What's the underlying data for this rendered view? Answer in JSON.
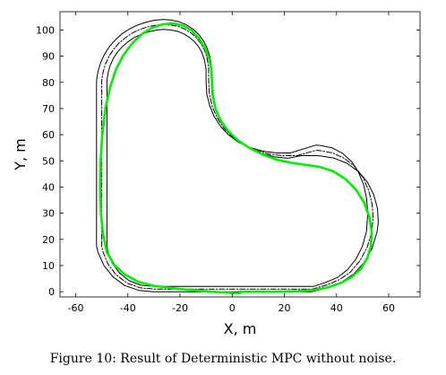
{
  "chart_data": {
    "type": "line",
    "title": "",
    "xlabel": "X, m",
    "ylabel": "Y, m",
    "xlim": [
      -66,
      72
    ],
    "ylim": [
      -2,
      107
    ],
    "xticks": [
      -60,
      -40,
      -20,
      0,
      20,
      40,
      60
    ],
    "yticks": [
      0,
      10,
      20,
      30,
      40,
      50,
      60,
      70,
      80,
      90,
      100
    ],
    "grid": false,
    "series": [
      {
        "role": "track-outer-boundary",
        "color": "#000000",
        "style": "solid",
        "x": [
          -52.0,
          -52.0,
          -51.9,
          -51.3,
          -50.3,
          -48.9,
          -47.1,
          -44.9,
          -42.4,
          -39.5,
          -36.5,
          -33.3,
          -30.0,
          -26.7,
          -23.5,
          -20.5,
          -17.6,
          -15.1,
          -12.9,
          -11.1,
          -9.7,
          -8.7,
          -8.1,
          -8.0,
          -8.0,
          -7.7,
          -6.5,
          -4.5,
          -1.7,
          2.0,
          6.3,
          11.1,
          16.2,
          21.4,
          26.5,
          32.0,
          33.6,
          38.9,
          43.9,
          48.3,
          51.8,
          54.3,
          55.7,
          56.0,
          55.5,
          53.6,
          50.5,
          46.5,
          41.6,
          36.2,
          30.5,
          30.0,
          0.0,
          -30.0,
          -35.8,
          -41.3,
          -45.8,
          -49.2,
          -51.4,
          -52.0,
          -52.0
        ],
        "y": [
          20.0,
          80.0,
          81.6,
          84.7,
          87.8,
          90.8,
          93.6,
          96.1,
          98.4,
          100.3,
          101.8,
          102.9,
          103.7,
          104.0,
          103.8,
          103.2,
          102.0,
          100.4,
          98.4,
          96.0,
          93.3,
          90.4,
          87.4,
          85.9,
          80.0,
          75.1,
          70.2,
          65.7,
          61.6,
          58.0,
          55.1,
          52.9,
          51.5,
          51.0,
          52.0,
          52.0,
          51.9,
          51.1,
          49.1,
          46.0,
          41.9,
          37.0,
          31.8,
          26.4,
          22.7,
          16.5,
          11.1,
          6.7,
          3.5,
          1.4,
          0.0,
          0.0,
          0.0,
          0.0,
          0.5,
          2.4,
          5.8,
          10.1,
          15.0,
          17.4,
          20.0
        ]
      },
      {
        "role": "track-centerline",
        "color": "#000000",
        "style": "dash-dot",
        "x": [
          -50.0,
          -50.0,
          -49.9,
          -49.4,
          -48.5,
          -47.2,
          -45.5,
          -43.5,
          -41.1,
          -38.5,
          -35.7,
          -32.7,
          -29.6,
          -26.6,
          -23.6,
          -20.7,
          -18.1,
          -15.7,
          -13.7,
          -12.0,
          -10.6,
          -9.7,
          -9.2,
          -9.0,
          -9.0,
          -8.7,
          -7.6,
          -5.7,
          -3.1,
          0.3,
          4.4,
          9.0,
          14.1,
          19.4,
          24.8,
          32.0,
          33.7,
          38.6,
          43.1,
          47.0,
          50.1,
          52.3,
          53.6,
          54.0,
          53.5,
          51.7,
          48.9,
          45.3,
          40.9,
          36.0,
          30.8,
          30.0,
          0.0,
          -30.0,
          -35.4,
          -40.4,
          -44.5,
          -47.6,
          -49.5,
          -50.0,
          -50.0
        ],
        "y": [
          20.0,
          80.0,
          81.5,
          84.3,
          87.2,
          90.0,
          92.5,
          94.9,
          96.9,
          98.7,
          100.1,
          101.1,
          101.8,
          102.1,
          101.9,
          101.4,
          100.3,
          98.8,
          97.0,
          94.8,
          92.3,
          89.6,
          86.8,
          85.4,
          80.0,
          75.3,
          70.6,
          66.3,
          62.4,
          58.9,
          56.1,
          54.0,
          52.6,
          52.0,
          52.0,
          54.0,
          53.9,
          53.0,
          50.9,
          47.8,
          43.7,
          38.8,
          33.6,
          28.4,
          22.9,
          16.9,
          11.7,
          7.5,
          4.5,
          2.5,
          1.0,
          1.0,
          1.0,
          1.0,
          1.5,
          3.3,
          6.5,
          10.5,
          15.1,
          17.4,
          20.0
        ]
      },
      {
        "role": "track-inner-boundary",
        "color": "#000000",
        "style": "solid",
        "x": [
          -48.0,
          -48.0,
          -47.9,
          -47.5,
          -46.7,
          -45.5,
          -44.0,
          -42.1,
          -40.0,
          -37.6,
          -35.0,
          -32.2,
          -29.3,
          -26.5,
          -23.7,
          -21.0,
          -18.5,
          -16.3,
          -14.4,
          -12.8,
          -11.6,
          -10.7,
          -10.2,
          -10.0,
          -10.0,
          -9.7,
          -8.6,
          -6.9,
          -4.4,
          -1.4,
          2.4,
          6.8,
          11.7,
          17.0,
          22.3,
          32.0,
          33.8,
          38.3,
          42.4,
          45.8,
          48.4,
          50.4,
          51.5,
          52.0,
          51.5,
          49.9,
          47.4,
          44.2,
          40.3,
          35.9,
          31.2,
          30.0,
          0.0,
          -30.0,
          -35.0,
          -39.5,
          -43.2,
          -46.0,
          -47.6,
          -48.0,
          -48.0
        ],
        "y": [
          20.0,
          80.0,
          81.4,
          84.0,
          86.6,
          89.2,
          91.5,
          93.6,
          95.4,
          97.1,
          98.3,
          99.3,
          99.9,
          100.2,
          100.0,
          99.5,
          98.5,
          97.1,
          95.5,
          93.5,
          91.3,
          88.8,
          86.3,
          85.0,
          80.0,
          75.4,
          71.0,
          66.9,
          63.1,
          59.9,
          57.1,
          55.1,
          53.7,
          53.0,
          53.0,
          56.0,
          55.9,
          55.0,
          52.8,
          49.7,
          45.6,
          40.8,
          35.7,
          30.4,
          23.2,
          17.3,
          12.4,
          8.4,
          5.4,
          3.6,
          2.0,
          2.0,
          2.0,
          2.0,
          2.5,
          4.2,
          7.2,
          10.9,
          15.2,
          17.4,
          20.0
        ]
      },
      {
        "role": "vehicle-trajectory",
        "color": "#00ee00",
        "style": "solid",
        "x": [
          3.0,
          -8.0,
          -20.0,
          -30.0,
          -36.0,
          -41.0,
          -45.0,
          -48.0,
          -49.5,
          -50.3,
          -50.6,
          -50.4,
          -49.8,
          -48.6,
          -46.8,
          -44.5,
          -41.6,
          -38.2,
          -34.5,
          -30.5,
          -26.5,
          -22.5,
          -18.8,
          -15.5,
          -12.7,
          -10.4,
          -8.8,
          -8.0,
          -7.7,
          -7.4,
          -6.4,
          -4.5,
          -1.6,
          2.0,
          6.5,
          11.5,
          16.8,
          22.3,
          27.8,
          33.5,
          38.8,
          43.5,
          47.5,
          50.6,
          52.6,
          53.5,
          53.2,
          51.8,
          49.3,
          45.8,
          41.4,
          36.5,
          31.0,
          25.0,
          18.0,
          10.0,
          3.0
        ],
        "y": [
          -0.6,
          0.0,
          1.0,
          2.2,
          3.8,
          6.5,
          10.0,
          15.0,
          22.0,
          30.0,
          40.0,
          50.0,
          60.0,
          70.0,
          78.0,
          85.0,
          90.5,
          95.0,
          98.5,
          100.9,
          102.2,
          102.5,
          101.7,
          99.8,
          96.8,
          93.0,
          89.0,
          85.0,
          80.0,
          75.0,
          70.0,
          65.5,
          61.5,
          58.0,
          55.0,
          52.5,
          50.5,
          49.3,
          48.5,
          47.7,
          46.0,
          43.0,
          39.0,
          34.0,
          28.5,
          23.0,
          17.5,
          12.8,
          8.7,
          5.6,
          3.2,
          1.6,
          0.6,
          0.2,
          0.0,
          0.0,
          0.0
        ]
      }
    ]
  },
  "caption": "Figure 10: Result of Deterministic MPC without noise."
}
